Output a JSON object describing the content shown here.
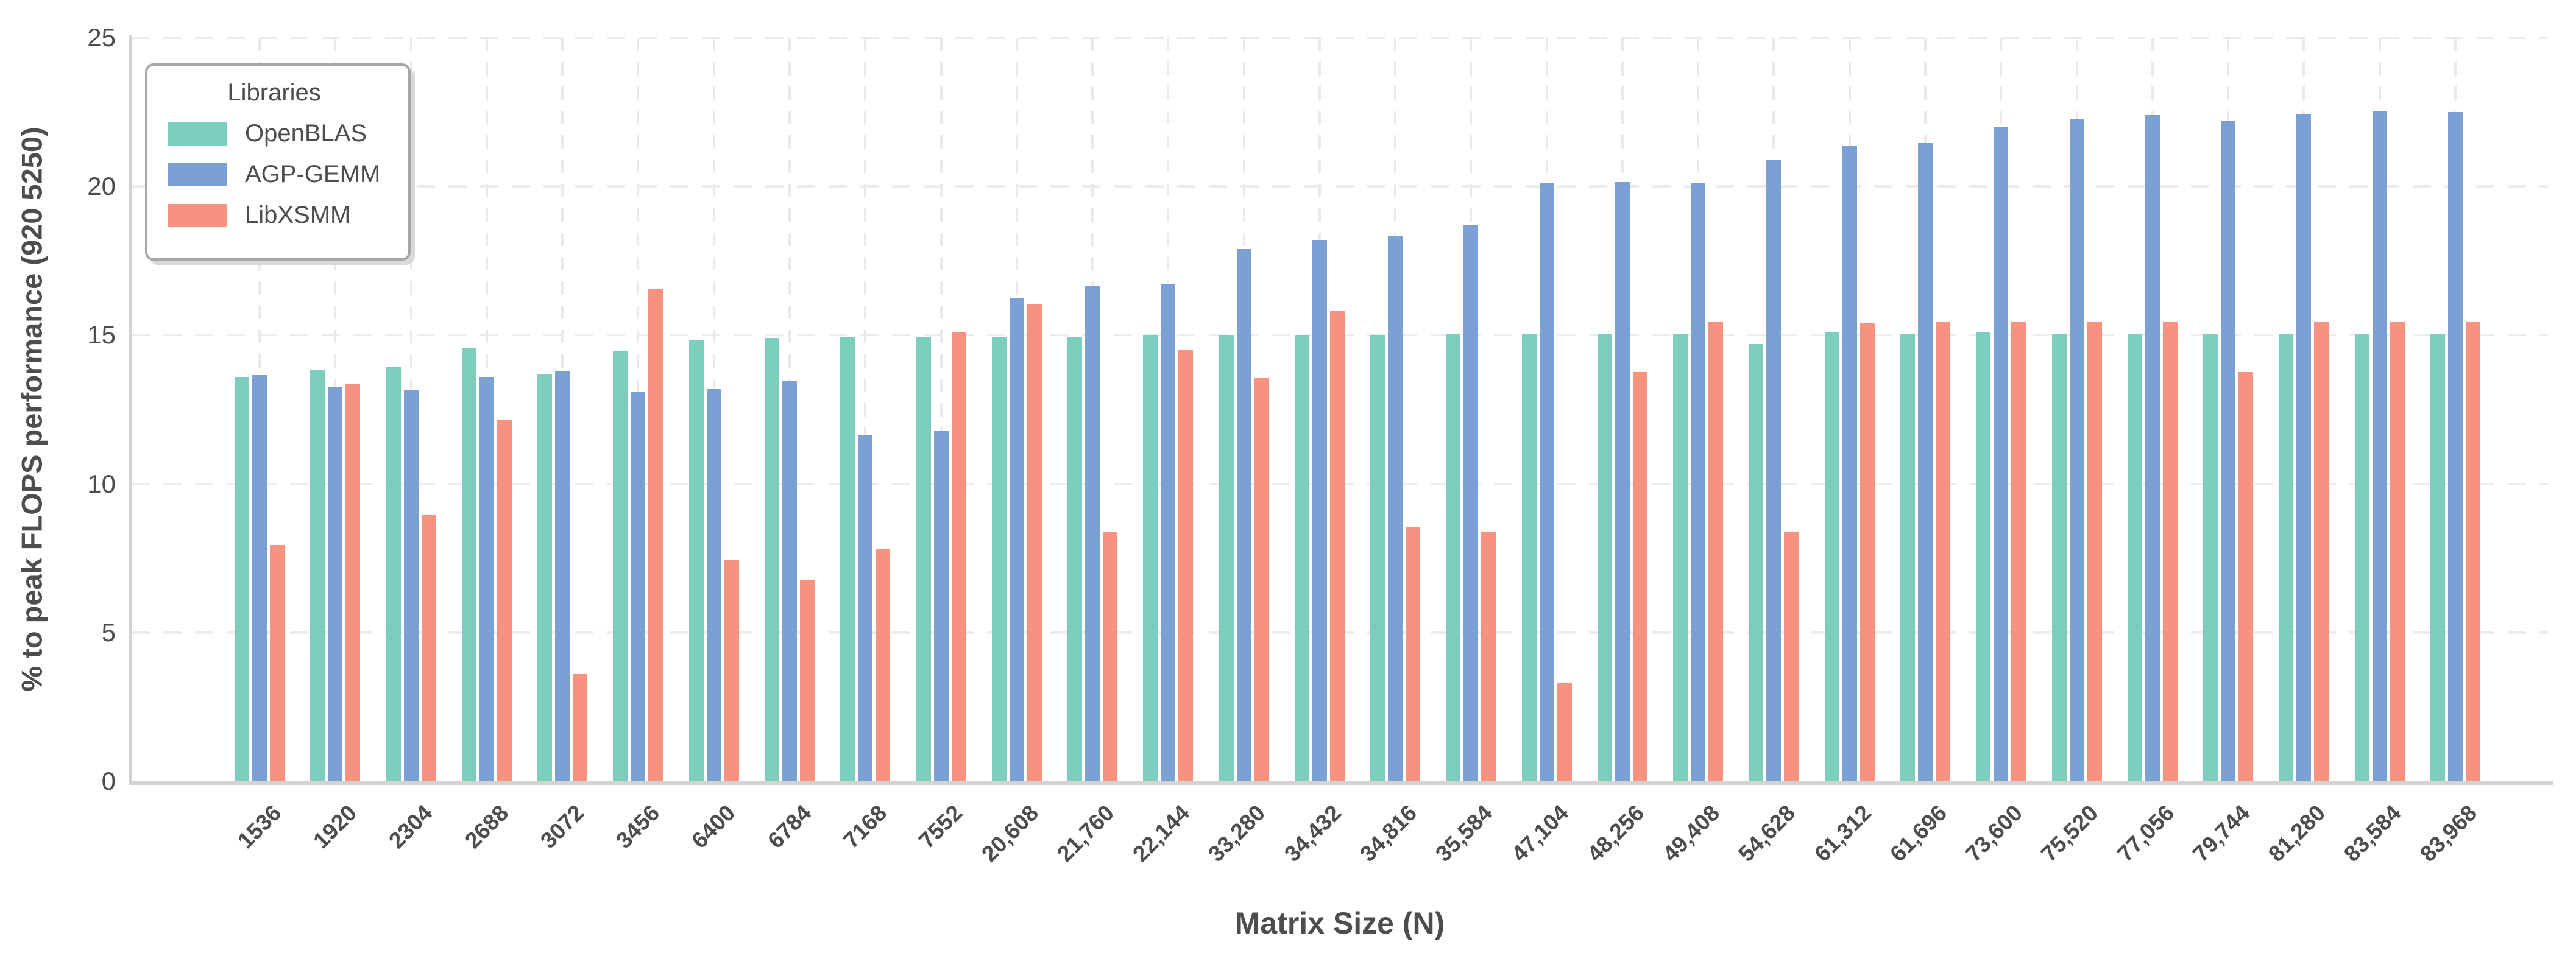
{
  "figure": {
    "background": "#ffffff"
  },
  "colors": {
    "text": "#4d4d4d",
    "grid": "#eaeaea",
    "spine": "#d3d3d3",
    "legend_border": "#a6a6a6"
  },
  "chart_data": {
    "type": "bar",
    "title": "",
    "xlabel": "Matrix Size (N)",
    "ylabel": "% to peak FLOPS performance (920 5250)",
    "ylim": [
      0,
      25
    ],
    "yticks": [
      0,
      5,
      10,
      15,
      20,
      25
    ],
    "grid": true,
    "legend_position": "upper-left",
    "legend_title": "Libraries",
    "categories": [
      "1536",
      "1920",
      "2304",
      "2688",
      "3072",
      "3456",
      "6400",
      "6784",
      "7168",
      "7552",
      "20,608",
      "21,760",
      "22,144",
      "33,280",
      "34,432",
      "34,816",
      "35,584",
      "47,104",
      "48,256",
      "49,408",
      "54,628",
      "61,312",
      "61,696",
      "73,600",
      "75,520",
      "77,056",
      "79,744",
      "81,280",
      "83,584",
      "83,968"
    ],
    "series": [
      {
        "name": "OpenBLAS",
        "color": "#7dcdbc",
        "values": [
          13.6,
          13.85,
          13.95,
          14.55,
          13.7,
          14.45,
          14.85,
          14.9,
          14.95,
          14.95,
          14.95,
          14.95,
          15.0,
          15.0,
          15.0,
          15.0,
          15.05,
          15.05,
          15.05,
          15.05,
          14.7,
          15.1,
          15.05,
          15.1,
          15.05,
          15.05,
          15.05,
          15.05,
          15.05,
          15.05
        ]
      },
      {
        "name": "AGP-GEMM",
        "color": "#7ba0d4",
        "values": [
          13.65,
          13.25,
          13.15,
          13.6,
          13.8,
          13.1,
          13.2,
          13.45,
          11.65,
          11.8,
          16.25,
          16.65,
          16.7,
          17.9,
          18.2,
          18.35,
          18.7,
          20.1,
          20.15,
          20.1,
          20.9,
          21.35,
          21.45,
          22.0,
          22.25,
          22.4,
          22.2,
          22.45,
          22.55,
          22.5
        ]
      },
      {
        "name": "LibXSMM",
        "color": "#f6927f",
        "values": [
          7.95,
          13.35,
          8.95,
          12.15,
          3.6,
          16.55,
          7.45,
          6.75,
          7.8,
          15.1,
          16.05,
          8.4,
          14.5,
          13.55,
          15.8,
          8.55,
          8.4,
          3.3,
          13.75,
          15.45,
          8.4,
          15.4,
          15.45,
          15.45,
          15.45,
          15.45,
          13.75,
          15.45,
          15.45,
          15.45
        ]
      }
    ]
  }
}
